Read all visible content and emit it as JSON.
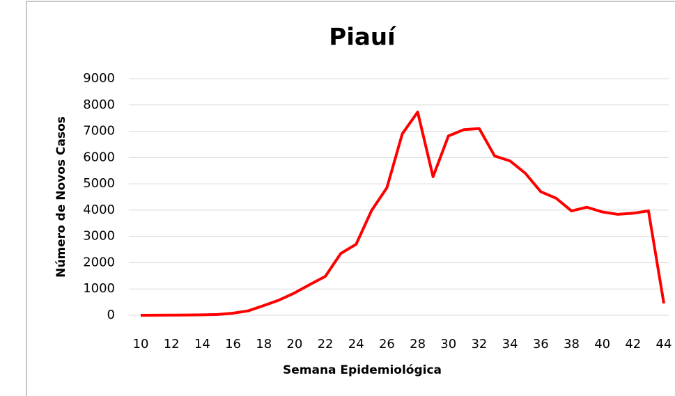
{
  "chart_data": {
    "type": "line",
    "title": "Piauí",
    "x_label": "Semana Epidemiológica",
    "y_label": "Número de Novos Casos",
    "x": [
      10,
      11,
      12,
      13,
      14,
      15,
      16,
      17,
      18,
      19,
      20,
      21,
      22,
      23,
      24,
      25,
      26,
      27,
      28,
      29,
      30,
      31,
      32,
      33,
      34,
      35,
      36,
      37,
      38,
      39,
      40,
      41,
      42,
      43,
      44
    ],
    "series": [
      {
        "name": "Piauí",
        "color": "#ff0000",
        "values": [
          0,
          2,
          5,
          10,
          15,
          30,
          80,
          170,
          370,
          580,
          850,
          1170,
          1480,
          2350,
          2700,
          3980,
          4850,
          6900,
          7730,
          5270,
          6820,
          7060,
          7100,
          6060,
          5870,
          5400,
          4700,
          4450,
          3970,
          4110,
          3930,
          3840,
          3880,
          3970,
          450
        ]
      }
    ],
    "xlim": [
      10,
      44
    ],
    "xticks": [
      10,
      12,
      14,
      16,
      18,
      20,
      22,
      24,
      26,
      28,
      30,
      32,
      34,
      36,
      38,
      40,
      42,
      44
    ],
    "ylim": [
      0,
      9000
    ],
    "yticks": [
      0,
      1000,
      2000,
      3000,
      4000,
      5000,
      6000,
      7000,
      8000,
      9000
    ],
    "grid": true
  }
}
